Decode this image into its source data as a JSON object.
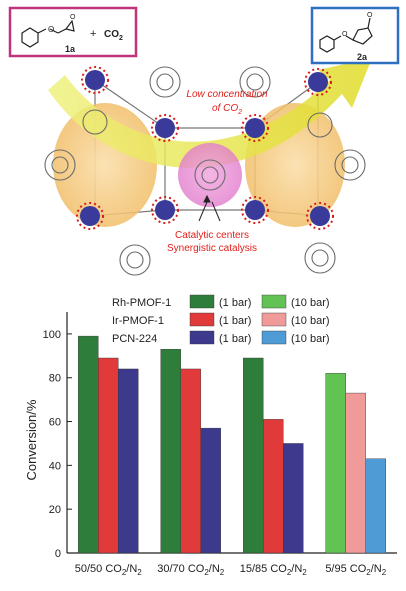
{
  "scheme": {
    "reactant_label": "1a",
    "plus": "+",
    "co2_text": "CO",
    "co2_sub": "2",
    "product_label": "2a",
    "low_conc_line1": "Low concentration",
    "low_conc_line2": "of CO",
    "low_conc_sub": "2",
    "catalytic_line1": "Catalytic centers",
    "catalytic_line2": "Synergistic catalysis",
    "colors": {
      "reactant_box": "#c0357a",
      "product_box": "#2f6fc1",
      "annotation_red": "#e0201c",
      "arrow_yellow": "#e8e23a",
      "cavity_orange": "#f2c57a",
      "highlight_pink": "#e68bd4",
      "cluster_blue": "#3a3a9a",
      "oxygen_red": "#d91e1e"
    }
  },
  "chart_data": {
    "type": "bar",
    "categories": [
      "50/50 CO2/N2",
      "30/70 CO2/N2",
      "15/85 CO2/N2",
      "5/95 CO2/N2"
    ],
    "category_labels": [
      {
        "pre": "50/50 CO",
        "sub1": "2",
        "mid": "/N",
        "sub2": "2"
      },
      {
        "pre": "30/70 CO",
        "sub1": "2",
        "mid": "/N",
        "sub2": "2"
      },
      {
        "pre": "15/85 CO",
        "sub1": "2",
        "mid": "/N",
        "sub2": "2"
      },
      {
        "pre": "5/95 CO",
        "sub1": "2",
        "mid": "/N",
        "sub2": "2"
      }
    ],
    "series": [
      {
        "name": "Rh-PMOF-1",
        "pressure_low": "(1 bar)",
        "pressure_high": "(10 bar)",
        "color_low": "#2e7d3a",
        "color_high": "#62c254",
        "values": [
          99,
          93,
          89,
          82
        ]
      },
      {
        "name": "Ir-PMOF-1",
        "pressure_low": "(1 bar)",
        "pressure_high": "(10 bar)",
        "color_low": "#e03a3a",
        "color_high": "#f09a9a",
        "values": [
          89,
          84,
          61,
          73
        ]
      },
      {
        "name": "PCN-224",
        "pressure_low": "(1 bar)",
        "pressure_high": "(10 bar)",
        "color_low": "#3d3a8e",
        "color_high": "#4f9bd6",
        "values": [
          84,
          57,
          50,
          43
        ]
      }
    ],
    "high_pressure_category": 3,
    "ylabel": "Conversion/%",
    "yticks": [
      "0",
      "20",
      "40",
      "60",
      "80",
      "100"
    ],
    "ylim": [
      0,
      110
    ],
    "legend_position": "top"
  }
}
